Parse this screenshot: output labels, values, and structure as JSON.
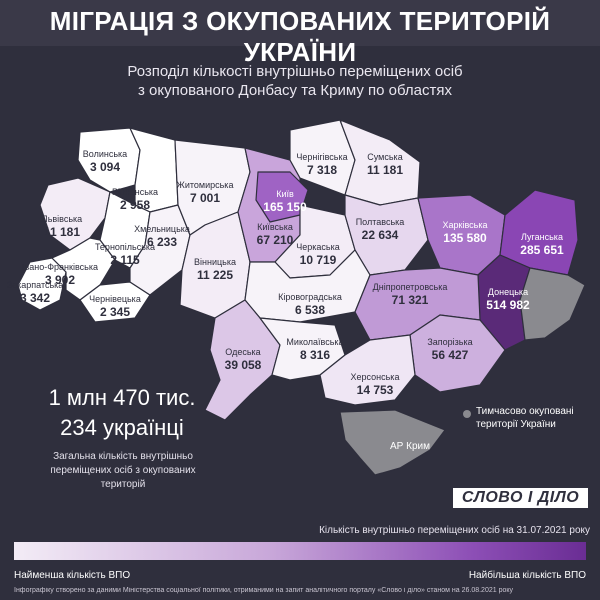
{
  "header": {
    "title": "МІГРАЦІЯ З ОКУПОВАНИХ ТЕРИТОРІЙ УКРАЇНИ",
    "subtitle_line1": "Розподіл кількості внутрішньо переміщених осіб",
    "subtitle_line2": "з окупованого Донбасу та Криму по областях"
  },
  "regions": [
    {
      "id": "volynska",
      "name": "Волинська",
      "value": "3 094",
      "color": "#ffffff"
    },
    {
      "id": "rivnenska",
      "name": "Рівненська",
      "value": "2 958",
      "color": "#ffffff"
    },
    {
      "id": "lvivska",
      "name": "Львівська",
      "value": "11 181",
      "color": "#f3ecf6"
    },
    {
      "id": "ternopilska",
      "name": "Тернопільська",
      "value": "2 115",
      "color": "#ffffff"
    },
    {
      "id": "zakarpatska",
      "name": "Закарпатська",
      "value": "3 342",
      "color": "#ffffff"
    },
    {
      "id": "ivano",
      "name": "Івано-Франківська",
      "value": "3 902",
      "color": "#ffffff"
    },
    {
      "id": "chernivetska",
      "name": "Чернівецька",
      "value": "2 345",
      "color": "#ffffff"
    },
    {
      "id": "khmelnytska",
      "name": "Хмельницька",
      "value": "6 233",
      "color": "#f7f3f9"
    },
    {
      "id": "zhytomyrska",
      "name": "Житомирська",
      "value": "7 001",
      "color": "#f7f3f9"
    },
    {
      "id": "vinnytska",
      "name": "Вінницька",
      "value": "11 225",
      "color": "#f3ecf6"
    },
    {
      "id": "kyiv",
      "name": "Київ",
      "value": "165 150",
      "color": "#9f63c4"
    },
    {
      "id": "kyivska",
      "name": "Київська",
      "value": "67 210",
      "color": "#c9a5db"
    },
    {
      "id": "chernihivska",
      "name": "Чернігівська",
      "value": "7 318",
      "color": "#f7f3f9"
    },
    {
      "id": "sumska",
      "name": "Сумська",
      "value": "11 181",
      "color": "#f3ecf6"
    },
    {
      "id": "cherkaska",
      "name": "Черкаська",
      "value": "10 719",
      "color": "#f3ecf6"
    },
    {
      "id": "poltavska",
      "name": "Полтавська",
      "value": "22 634",
      "color": "#e6d7ee"
    },
    {
      "id": "kharkivska",
      "name": "Харківська",
      "value": "135 580",
      "color": "#a975c9"
    },
    {
      "id": "luhanska",
      "name": "Луганська",
      "value": "285 651",
      "color": "#8a46b4"
    },
    {
      "id": "donetska",
      "name": "Донецька",
      "value": "514 982",
      "color": "#5a2a78"
    },
    {
      "id": "kirovohradska",
      "name": "Кіровоградська",
      "value": "6 538",
      "color": "#f7f3f9"
    },
    {
      "id": "dnipro",
      "name": "Дніпропетровська",
      "value": "71 321",
      "color": "#c09ad6"
    },
    {
      "id": "zaporizka",
      "name": "Запорізька",
      "value": "56 427",
      "color": "#cdb0de"
    },
    {
      "id": "odeska",
      "name": "Одеська",
      "value": "39 058",
      "color": "#dcc7e7"
    },
    {
      "id": "mykolaivska",
      "name": "Миколаївська",
      "value": "8 316",
      "color": "#f7f3f9"
    },
    {
      "id": "khersonska",
      "name": "Херсонська",
      "value": "14 753",
      "color": "#efe6f4"
    }
  ],
  "crimea_label": "АР Крим",
  "occupied_legend": "Тимчасово окуповані території України",
  "total": {
    "line1": "1 млн 470 тис.",
    "line2": "234 українці",
    "note": "Загальна кількість внутрішньо переміщених осіб з окупованих територій"
  },
  "logo": "СЛОВО І ДІЛО",
  "scale": {
    "caption": "Кількість внутрішньо переміщених осіб на 31.07.2021 року",
    "min_label": "Найменша кількість ВПО",
    "max_label": "Найбільша кількість ВПО"
  },
  "footer": "Інфографіку створено за даними Міністерства соціальної політики, отриманими на запит аналітичного порталу «Слово і діло» станом на 26.08.2021 року",
  "colors": {
    "background": "#2f2f3d",
    "occupied": "#8a8a8f",
    "accent": "#8a46b4"
  }
}
